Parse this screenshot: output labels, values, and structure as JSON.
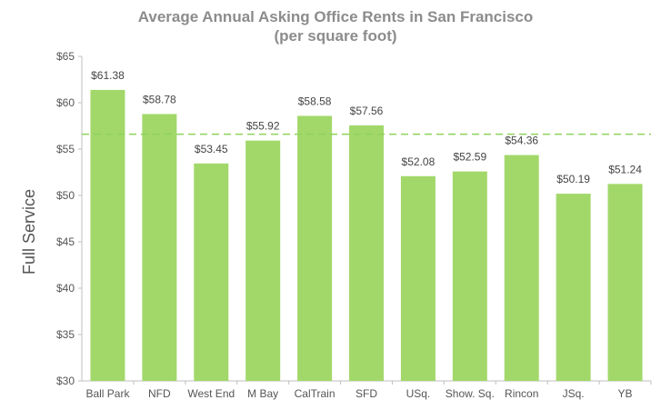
{
  "chart_data": {
    "type": "bar",
    "title": "Average Annual Asking Office Rents in San Francisco",
    "subtitle": "(per square foot)",
    "ylabel": "Full Service",
    "xlabel": "",
    "categories": [
      "Ball Park",
      "NFD",
      "West End",
      "M Bay",
      "CalTrain",
      "SFD",
      "USq.",
      "Show. Sq.",
      "Rincon",
      "JSq.",
      "YB"
    ],
    "values": [
      61.38,
      58.78,
      53.45,
      55.92,
      58.58,
      57.56,
      52.08,
      52.59,
      54.36,
      50.19,
      51.24
    ],
    "data_labels": [
      "$61.38",
      "$58.78",
      "$53.45",
      "$55.92",
      "$58.58",
      "$57.56",
      "$52.08",
      "$52.59",
      "$54.36",
      "$50.19",
      "$51.24"
    ],
    "yticks": [
      30,
      35,
      40,
      45,
      50,
      55,
      60,
      65
    ],
    "ytick_labels": [
      "$30",
      "$35",
      "$40",
      "$45",
      "$50",
      "$55",
      "$60",
      "$65"
    ],
    "ylim": [
      30,
      65
    ],
    "reference_line": 56.6,
    "grid": false,
    "legend": "none",
    "colors": {
      "bar": "#a2d86a",
      "reference_line": "#8fd25a",
      "axis": "#bfbfbf",
      "title": "#8c8c8c"
    }
  }
}
